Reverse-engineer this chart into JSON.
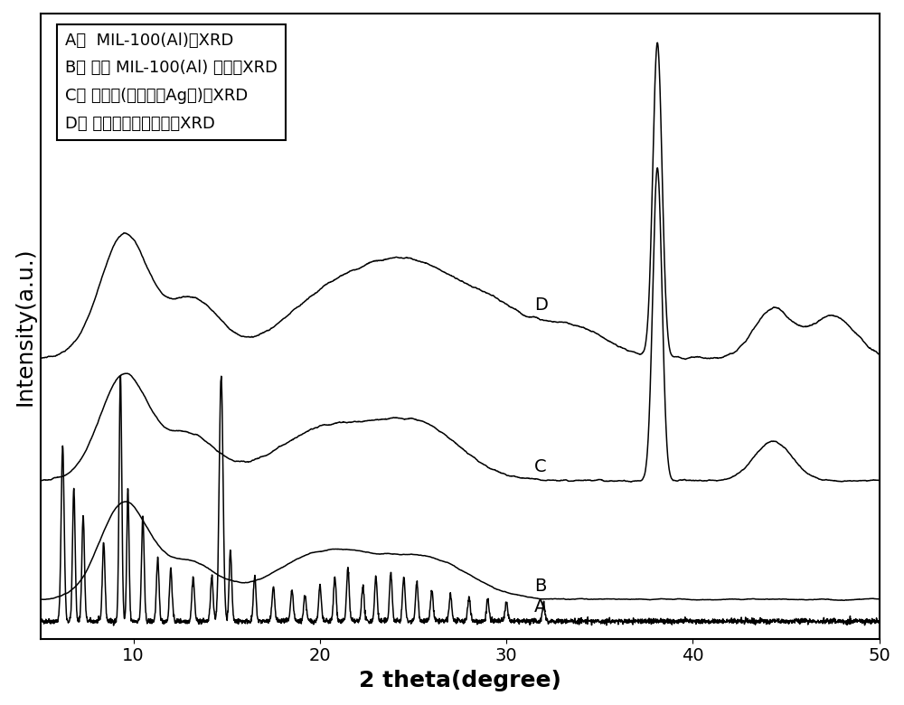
{
  "xlabel": "2 theta(degree)",
  "ylabel": "Intensity(a.u.)",
  "xlim": [
    5,
    50
  ],
  "legend_lines": [
    "A：  MIL-100(Al)的XRD",
    "B： 基于 MIL-100(Al) 的凝胶XRD",
    "C： 催化剂(凝胶负载Ag后)的XRD",
    "D： 催化剂用于降解后的XRD"
  ],
  "bg_color": "#ffffff",
  "line_color": "#000000",
  "font_size_axis_label": 18,
  "font_size_tick": 14,
  "font_size_legend": 13
}
